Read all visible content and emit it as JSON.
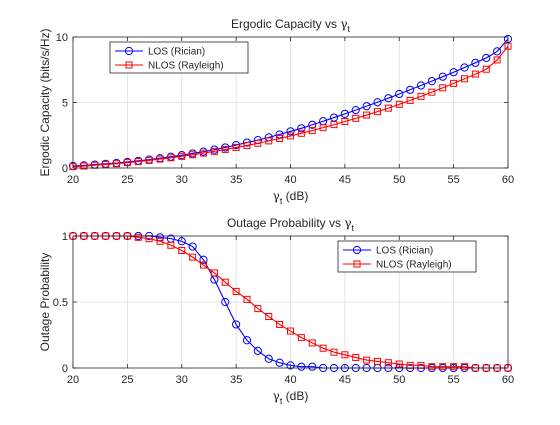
{
  "chart_data": [
    {
      "type": "line",
      "title_main": "Ergodic Capacity vs ",
      "title_symbol": "γ",
      "title_subscript": "t",
      "xlabel_symbol": "γ",
      "xlabel_subscript": "t",
      "xlabel_unit": " (dB)",
      "ylabel": "Ergodic Capacity (bits/s/Hz)",
      "xlim": [
        20,
        60
      ],
      "ylim": [
        0,
        10
      ],
      "xticks": [
        "20",
        "25",
        "30",
        "35",
        "40",
        "45",
        "50",
        "55",
        "60"
      ],
      "yticks": [
        "0",
        "5",
        "10"
      ],
      "grid": true,
      "legend_position": "top-left",
      "x": [
        20,
        21,
        22,
        23,
        24,
        25,
        26,
        27,
        28,
        29,
        30,
        31,
        32,
        33,
        34,
        35,
        36,
        37,
        38,
        39,
        40,
        41,
        42,
        43,
        44,
        45,
        46,
        47,
        48,
        49,
        50,
        51,
        52,
        53,
        54,
        55,
        56,
        57,
        58,
        59,
        60
      ],
      "series": [
        {
          "name": "LOS (Rician)",
          "color": "#0000ff",
          "marker": "circle",
          "values": [
            0.15,
            0.2,
            0.26,
            0.32,
            0.38,
            0.46,
            0.55,
            0.64,
            0.75,
            0.86,
            0.98,
            1.11,
            1.25,
            1.4,
            1.57,
            1.75,
            1.94,
            2.13,
            2.34,
            2.56,
            2.8,
            3.03,
            3.3,
            3.57,
            3.85,
            4.13,
            4.42,
            4.72,
            5.02,
            5.33,
            5.65,
            5.97,
            6.3,
            6.63,
            6.97,
            7.31,
            7.67,
            8.03,
            8.4,
            8.9,
            9.85
          ]
        },
        {
          "name": "NLOS (Rayleigh)",
          "color": "#ff0000",
          "marker": "square",
          "values": [
            0.1,
            0.15,
            0.21,
            0.27,
            0.33,
            0.41,
            0.49,
            0.58,
            0.68,
            0.78,
            0.89,
            1.01,
            1.14,
            1.27,
            1.42,
            1.57,
            1.72,
            1.89,
            2.07,
            2.25,
            2.45,
            2.65,
            2.86,
            3.08,
            3.31,
            3.55,
            3.79,
            4.04,
            4.3,
            4.57,
            4.86,
            5.16,
            5.47,
            5.79,
            6.12,
            6.46,
            6.81,
            7.17,
            7.54,
            8.25,
            9.3
          ]
        }
      ]
    },
    {
      "type": "line",
      "title_main": "Outage Probability vs ",
      "title_symbol": "γ",
      "title_subscript": "t",
      "xlabel_symbol": "γ",
      "xlabel_subscript": "t",
      "xlabel_unit": " (dB)",
      "ylabel": "Outage Probability",
      "xlim": [
        20,
        60
      ],
      "ylim": [
        0,
        1
      ],
      "xticks": [
        "20",
        "25",
        "30",
        "35",
        "40",
        "45",
        "50",
        "55",
        "60"
      ],
      "yticks": [
        "0",
        "0.5",
        "1"
      ],
      "grid": true,
      "legend_position": "top-right",
      "x": [
        20,
        21,
        22,
        23,
        24,
        25,
        26,
        27,
        28,
        29,
        30,
        31,
        32,
        33,
        34,
        35,
        36,
        37,
        38,
        39,
        40,
        41,
        42,
        43,
        44,
        45,
        46,
        47,
        48,
        49,
        50,
        51,
        52,
        53,
        54,
        55,
        56,
        57,
        58,
        59,
        60
      ],
      "series": [
        {
          "name": "LOS (Rician)",
          "color": "#0000ff",
          "marker": "circle",
          "values": [
            1,
            1,
            1,
            1,
            1,
            1,
            1,
            1,
            0.99,
            0.98,
            0.96,
            0.92,
            0.82,
            0.67,
            0.5,
            0.33,
            0.21,
            0.13,
            0.07,
            0.04,
            0.02,
            0.01,
            0.01,
            0,
            0,
            0,
            0,
            0,
            0,
            0,
            0,
            0,
            0,
            0,
            0,
            0,
            0,
            0,
            0,
            0,
            0
          ]
        },
        {
          "name": "NLOS (Rayleigh)",
          "color": "#ff0000",
          "marker": "square",
          "values": [
            1,
            1,
            1,
            1,
            1,
            1,
            0.99,
            0.98,
            0.96,
            0.93,
            0.89,
            0.84,
            0.78,
            0.72,
            0.65,
            0.58,
            0.52,
            0.45,
            0.39,
            0.33,
            0.28,
            0.23,
            0.19,
            0.15,
            0.12,
            0.1,
            0.08,
            0.06,
            0.05,
            0.04,
            0.03,
            0.02,
            0.02,
            0.01,
            0.01,
            0.01,
            0.01,
            0,
            0,
            0,
            0
          ]
        }
      ]
    }
  ]
}
